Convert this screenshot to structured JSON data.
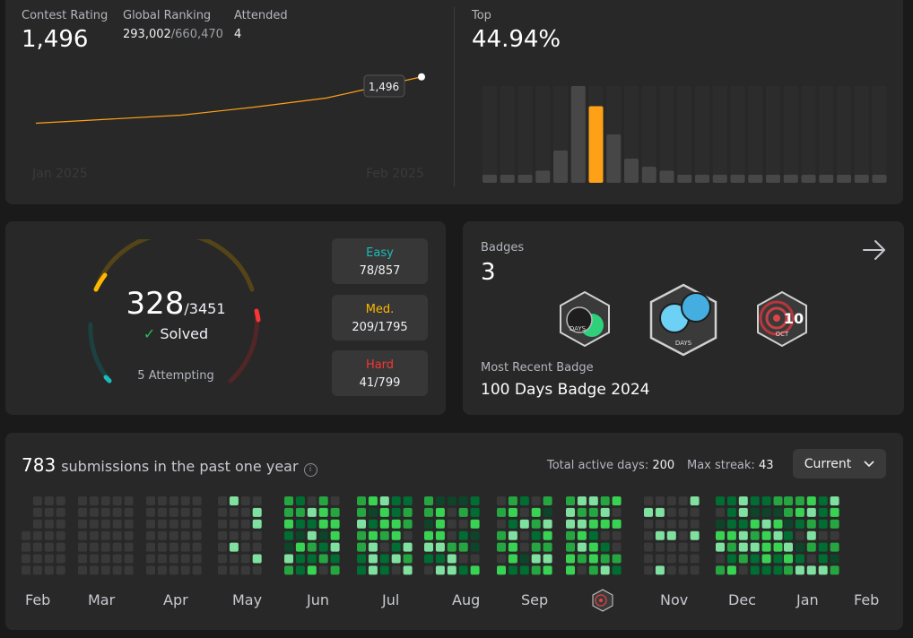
{
  "contest": {
    "rating_label": "Contest Rating",
    "rating_value": "1,496",
    "ranking_label": "Global Ranking",
    "ranking_value": "293,002",
    "ranking_total": "/660,470",
    "attended_label": "Attended",
    "attended_value": "4",
    "top_label": "Top",
    "top_value": "44.94%",
    "tooltip_value": "1,496",
    "x_start_label": "Jan 2025",
    "x_end_label": "Feb 2025",
    "line_color": "#ffa116",
    "histogram_highlight_color": "#ffa116"
  },
  "chart_data": [
    {
      "type": "line",
      "x": [
        "Jan 2025",
        "",
        "",
        "",
        "Feb 2025"
      ],
      "values": [
        1450,
        1458,
        1466,
        1475,
        1496
      ],
      "xlabel": "",
      "ylabel": "",
      "annotations": [
        "1,496"
      ]
    },
    {
      "type": "bar",
      "values": [
        2,
        2,
        2,
        3,
        8,
        24,
        19,
        12,
        6,
        4,
        3,
        2,
        2,
        2,
        2,
        2,
        2,
        2,
        2,
        2,
        2,
        2,
        2
      ],
      "highlight_index": 6,
      "title": "",
      "xlabel": "",
      "ylabel": ""
    }
  ],
  "solved": {
    "solved_value": "328",
    "total_value": "/3451",
    "solved_label": "Solved",
    "attempting_value": "5",
    "attempting_label": "Attempting",
    "easy_label": "Easy",
    "easy_value": "78/857",
    "medium_label": "Med.",
    "medium_value": "209/1795",
    "hard_label": "Hard",
    "hard_value": "41/799",
    "easy_color": "#1cbaba",
    "medium_color": "#ffb700",
    "hard_color": "#f63737"
  },
  "badges": {
    "label": "Badges",
    "count": "3",
    "recent_label": "Most Recent Badge",
    "recent_name": "100 Days Badge 2024",
    "badge1_text": "DAYS",
    "badge2_text": "DAYS",
    "badge3_text": "OCT",
    "badge3_num": "10"
  },
  "submissions": {
    "count": "783",
    "label": "submissions in the past one year",
    "active_days_label": "Total active days:",
    "active_days_value": "200",
    "max_streak_label": "Max streak:",
    "max_streak_value": "43",
    "dropdown_value": "Current",
    "months": [
      "Feb",
      "Mar",
      "Apr",
      "May",
      "Jun",
      "Jul",
      "Aug",
      "Sep",
      "Nov",
      "Dec",
      "Jan",
      "Feb"
    ]
  }
}
